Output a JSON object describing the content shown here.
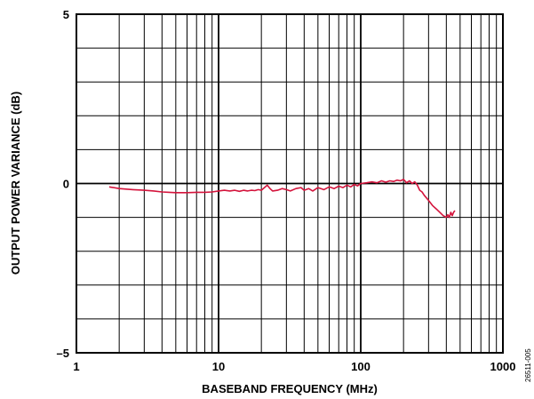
{
  "chart_data": {
    "type": "line",
    "title": "",
    "xlabel": "BASEBAND FREQUENCY (MHz)",
    "ylabel": "OUTPUT POWER VARIANCE (dB)",
    "x_scale": "log",
    "xlim": [
      1,
      1000
    ],
    "ylim": [
      -5,
      5
    ],
    "grid": true,
    "x_ticks": [
      "1",
      "10",
      "100",
      "1000"
    ],
    "y_ticks": [
      "5",
      "0",
      "–5"
    ],
    "figure_code": "26511-005",
    "series": [
      {
        "color": "#d4143c",
        "points": [
          [
            1.7,
            -0.1
          ],
          [
            2,
            -0.15
          ],
          [
            2.5,
            -0.18
          ],
          [
            3,
            -0.2
          ],
          [
            3.5,
            -0.22
          ],
          [
            4,
            -0.25
          ],
          [
            4.5,
            -0.26
          ],
          [
            5,
            -0.27
          ],
          [
            6,
            -0.27
          ],
          [
            7,
            -0.26
          ],
          [
            8,
            -0.26
          ],
          [
            9,
            -0.25
          ],
          [
            10,
            -0.22
          ],
          [
            11,
            -0.2
          ],
          [
            12,
            -0.22
          ],
          [
            13,
            -0.2
          ],
          [
            14,
            -0.23
          ],
          [
            15,
            -0.2
          ],
          [
            16,
            -0.22
          ],
          [
            17,
            -0.2
          ],
          [
            18,
            -0.21
          ],
          [
            19,
            -0.18
          ],
          [
            20,
            -0.2
          ],
          [
            21,
            -0.12
          ],
          [
            22,
            -0.05
          ],
          [
            23,
            -0.15
          ],
          [
            24,
            -0.22
          ],
          [
            26,
            -0.2
          ],
          [
            28,
            -0.15
          ],
          [
            30,
            -0.18
          ],
          [
            32,
            -0.22
          ],
          [
            35,
            -0.15
          ],
          [
            38,
            -0.12
          ],
          [
            40,
            -0.2
          ],
          [
            43,
            -0.15
          ],
          [
            46,
            -0.22
          ],
          [
            50,
            -0.12
          ],
          [
            55,
            -0.18
          ],
          [
            60,
            -0.1
          ],
          [
            65,
            -0.15
          ],
          [
            70,
            -0.08
          ],
          [
            75,
            -0.12
          ],
          [
            80,
            -0.05
          ],
          [
            85,
            -0.1
          ],
          [
            90,
            -0.03
          ],
          [
            95,
            -0.07
          ],
          [
            100,
            0.0
          ],
          [
            110,
            0.02
          ],
          [
            120,
            0.05
          ],
          [
            130,
            0.02
          ],
          [
            140,
            0.08
          ],
          [
            150,
            0.04
          ],
          [
            160,
            0.08
          ],
          [
            170,
            0.06
          ],
          [
            180,
            0.1
          ],
          [
            190,
            0.08
          ],
          [
            200,
            0.12
          ],
          [
            210,
            0.02
          ],
          [
            220,
            0.08
          ],
          [
            230,
            0.0
          ],
          [
            240,
            0.05
          ],
          [
            250,
            -0.05
          ],
          [
            260,
            -0.2
          ],
          [
            270,
            -0.25
          ],
          [
            280,
            -0.35
          ],
          [
            300,
            -0.5
          ],
          [
            320,
            -0.65
          ],
          [
            340,
            -0.75
          ],
          [
            360,
            -0.85
          ],
          [
            380,
            -0.95
          ],
          [
            400,
            -1.0
          ],
          [
            410,
            -0.92
          ],
          [
            420,
            -1.0
          ],
          [
            430,
            -0.85
          ],
          [
            440,
            -0.95
          ],
          [
            450,
            -0.85
          ],
          [
            460,
            -0.8
          ]
        ]
      }
    ]
  }
}
